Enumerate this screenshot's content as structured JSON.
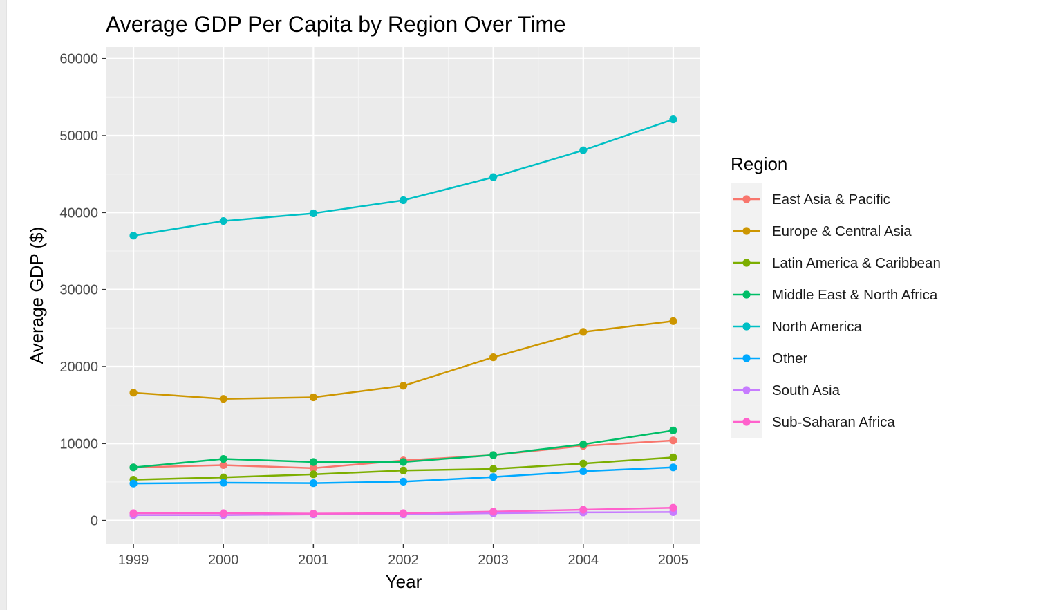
{
  "colors": {
    "panel_bg": "#ebebeb",
    "grid_major": "#ffffff",
    "grid_minor": "#f5f5f5",
    "tick": "#333333",
    "legend_key_bg": "#f2f2f2"
  },
  "chart_data": {
    "type": "line",
    "title": "Average GDP Per Capita by Region Over Time",
    "xlabel": "Year",
    "ylabel": "Average GDP ($)",
    "x": [
      1999,
      2000,
      2001,
      2002,
      2003,
      2004,
      2005
    ],
    "x_tick_labels": [
      "1999",
      "2000",
      "2001",
      "2002",
      "2003",
      "2004",
      "2005"
    ],
    "ylim": [
      -3000,
      61500
    ],
    "y_ticks": [
      0,
      10000,
      20000,
      30000,
      40000,
      50000,
      60000
    ],
    "y_tick_labels": [
      "0",
      "10000",
      "20000",
      "30000",
      "40000",
      "50000",
      "60000"
    ],
    "grid": true,
    "markers": true,
    "legend": {
      "title": "Region",
      "placement": "right"
    },
    "series": [
      {
        "name": "East Asia & Pacific",
        "color": "#F8766D",
        "values": [
          6900,
          7200,
          6800,
          7800,
          8500,
          9700,
          10400
        ]
      },
      {
        "name": "Europe & Central Asia",
        "color": "#CD9600",
        "values": [
          16600,
          15800,
          16000,
          17500,
          21200,
          24500,
          25900
        ]
      },
      {
        "name": "Latin America & Caribbean",
        "color": "#7CAE00",
        "values": [
          5300,
          5600,
          6000,
          6500,
          6700,
          7400,
          8200
        ]
      },
      {
        "name": "Middle East & North Africa",
        "color": "#00BE67",
        "values": [
          6900,
          8000,
          7600,
          7600,
          8500,
          9900,
          11700
        ]
      },
      {
        "name": "North America",
        "color": "#00BFC4",
        "values": [
          37000,
          38900,
          39900,
          41600,
          44600,
          48100,
          52100
        ]
      },
      {
        "name": "Other",
        "color": "#00A9FF",
        "values": [
          4800,
          4900,
          4850,
          5050,
          5650,
          6400,
          6900
        ]
      },
      {
        "name": "South Asia",
        "color": "#C77CFF",
        "values": [
          700,
          700,
          800,
          800,
          950,
          1050,
          1100
        ]
      },
      {
        "name": "Sub-Saharan Africa",
        "color": "#FF61CC",
        "values": [
          950,
          950,
          900,
          950,
          1150,
          1400,
          1650
        ]
      }
    ]
  }
}
